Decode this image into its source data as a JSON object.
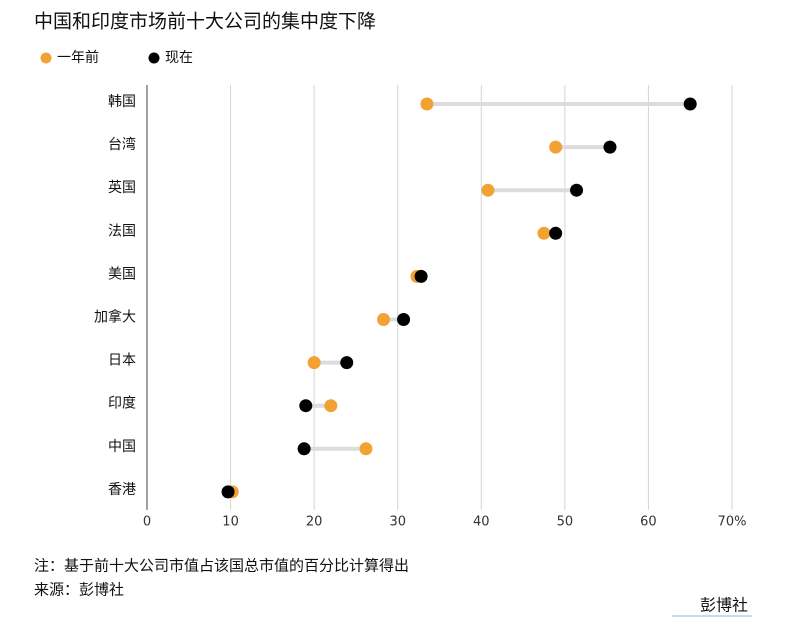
{
  "chart_data": {
    "type": "dumbbell",
    "title": "中国和印度市场前十大公司的集中度下降",
    "categories": [
      "韩国",
      "台湾",
      "英国",
      "法国",
      "美国",
      "加拿大",
      "日本",
      "印度",
      "中国",
      "香港"
    ],
    "series": [
      {
        "name": "一年前",
        "color": "#f2a233",
        "values": [
          33.5,
          48.9,
          40.8,
          47.5,
          32.3,
          28.3,
          20.0,
          22.0,
          26.2,
          10.2
        ]
      },
      {
        "name": "现在",
        "color": "#000000",
        "values": [
          65.0,
          55.4,
          51.4,
          48.9,
          32.8,
          30.7,
          23.9,
          19.0,
          18.8,
          9.7
        ]
      }
    ],
    "xlim": [
      0,
      70
    ],
    "xticks": [
      0,
      10,
      20,
      30,
      40,
      50,
      60,
      {
        "value": 70,
        "label": "70%"
      }
    ],
    "grid": true,
    "note": "注：基于前十大公司市值占该国总市值的百分比计算得出",
    "source": "来源：彭博社",
    "logo": "彭博社"
  }
}
